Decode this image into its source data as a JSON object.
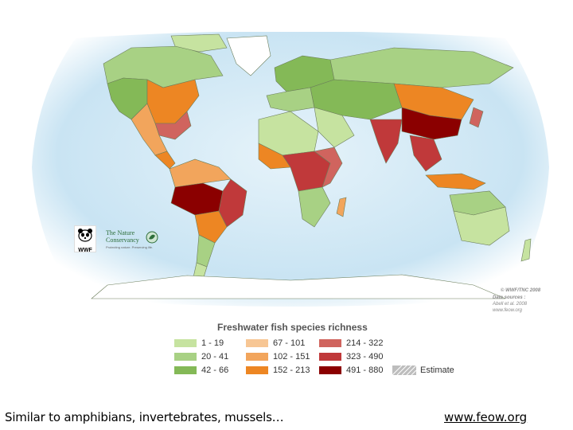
{
  "map": {
    "copyright": "© WWF/TNC 2008",
    "sources_label": "Data sources :",
    "sources_line1": "Abell et al. 2008",
    "sources_line2": "www.feow.org",
    "logo_wwf": "WWF",
    "logo_tnc": "The Nature Conservancy",
    "logo_tnc_tagline": "Protecting nature. Preserving life."
  },
  "legend": {
    "title": "Freshwater fish species richness",
    "classes": [
      {
        "label": "1 - 19",
        "color": "#c6e3a0"
      },
      {
        "label": "20 - 41",
        "color": "#a8d184"
      },
      {
        "label": "42 - 66",
        "color": "#84b957"
      },
      {
        "label": "67 - 101",
        "color": "#f7c694"
      },
      {
        "label": "102 - 151",
        "color": "#f2a55c"
      },
      {
        "label": "152 - 213",
        "color": "#ed8623"
      },
      {
        "label": "214 - 322",
        "color": "#d0645e"
      },
      {
        "label": "323 - 490",
        "color": "#c0393a"
      },
      {
        "label": "491 - 880",
        "color": "#8b0000"
      }
    ],
    "estimate_label": "Estimate"
  },
  "colors": {
    "ocean": "#d7ecf7",
    "ocean_edge": "#ffffff",
    "land_outline": "#6b7d5a",
    "estimate_fill": "#bdbdbd"
  },
  "footer": {
    "caption": "Similar to amphibians, invertebrates, mussels…",
    "link": "www.feow.org"
  }
}
